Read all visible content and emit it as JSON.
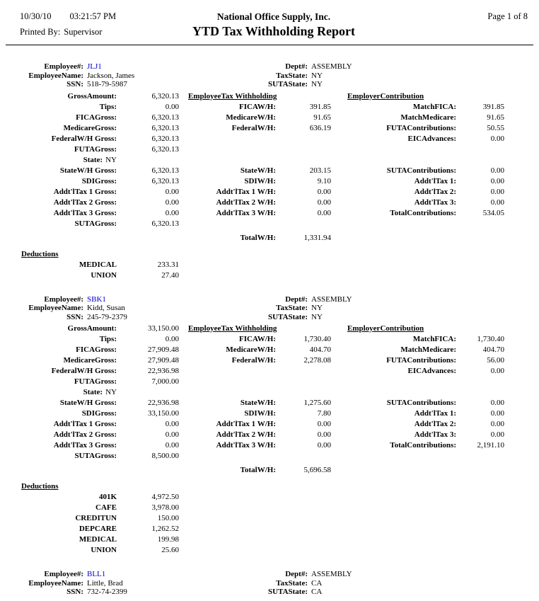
{
  "header": {
    "date": "10/30/10",
    "time": "03:21:57 PM",
    "printed_by_label": "Printed By:",
    "printed_by_value": "Supervisor",
    "company_name": "National Office Supply, Inc.",
    "report_title": "YTD Tax Withholding Report",
    "page_info": "Page 1 of 8"
  },
  "colors": {
    "text": "#000000",
    "employee_link": "#0000cc",
    "background": "#ffffff"
  },
  "labels": {
    "employee_no": "Employee#:",
    "employee_name": "EmployeeName:",
    "ssn": "SSN:",
    "dept": "Dept#:",
    "tax_state": "TaxState:",
    "suta_state": "SUTAState:",
    "gross_amount": "GrossAmount:",
    "tips": "Tips:",
    "fica_gross": "FICAGross:",
    "medicare_gross": "MedicareGross:",
    "federal_wh_gross": "FederalW/H Gross:",
    "futa_gross": "FUTAGross:",
    "state": "State:",
    "state_wh_gross": "StateW/H Gross:",
    "sdi_gross": "SDIGross:",
    "addl_tax_1_gross": "Addt'lTax 1 Gross:",
    "addl_tax_2_gross": "Addt'lTax 2 Gross:",
    "addl_tax_3_gross": "Addt'lTax 3 Gross:",
    "suta_gross": "SUTAGross:",
    "employee_tax_header": "EmployeeTax Withholding",
    "fica_wh": "FICAW/H:",
    "medicare_wh": "MedicareW/H:",
    "federal_wh": "FederalW/H:",
    "state_wh": "StateW/H:",
    "sdi_wh": "SDIW/H:",
    "addl_tax_1_wh": "Addt'lTax 1 W/H:",
    "addl_tax_2_wh": "Addt'lTax 2 W/H:",
    "addl_tax_3_wh": "Addt'lTax 3 W/H:",
    "total_wh": "TotalW/H:",
    "employer_contrib_header": "EmployerContribution",
    "match_fica": "MatchFICA:",
    "match_medicare": "MatchMedicare:",
    "futa_contributions": "FUTAContributions:",
    "eic_advances": "EICAdvances:",
    "suta_contributions": "SUTAContributions:",
    "addl_tax_1": "Addt'lTax 1:",
    "addl_tax_2": "Addt'lTax 2:",
    "addl_tax_3": "Addt'lTax 3:",
    "total_contributions": "TotalContributions:",
    "deductions": "Deductions"
  },
  "employees": [
    {
      "employee_no": "JLJ1",
      "name": "Jackson, James",
      "ssn": "518-79-5987",
      "dept": "ASSEMBLY",
      "tax_state": "NY",
      "suta_state": "NY",
      "state": "NY",
      "amounts": {
        "gross_amount": "6,320.13",
        "tips": "0.00",
        "fica_gross": "6,320.13",
        "medicare_gross": "6,320.13",
        "federal_wh_gross": "6,320.13",
        "futa_gross": "6,320.13",
        "state_wh_gross": "6,320.13",
        "sdi_gross": "6,320.13",
        "addl_tax_1_gross": "0.00",
        "addl_tax_2_gross": "0.00",
        "addl_tax_3_gross": "0.00",
        "suta_gross": "6,320.13",
        "fica_wh": "391.85",
        "medicare_wh": "91.65",
        "federal_wh": "636.19",
        "state_wh": "203.15",
        "sdi_wh": "9.10",
        "addl_tax_1_wh": "0.00",
        "addl_tax_2_wh": "0.00",
        "addl_tax_3_wh": "0.00",
        "total_wh": "1,331.94",
        "match_fica": "391.85",
        "match_medicare": "91.65",
        "futa_contributions": "50.55",
        "eic_advances": "0.00",
        "suta_contributions": "0.00",
        "addl_tax_1": "0.00",
        "addl_tax_2": "0.00",
        "addl_tax_3": "0.00",
        "total_contributions": "534.05"
      },
      "deductions": [
        {
          "name": "MEDICAL",
          "amount": "233.31"
        },
        {
          "name": "UNION",
          "amount": "27.40"
        }
      ]
    },
    {
      "employee_no": "SBK1",
      "name": "Kidd, Susan",
      "ssn": "245-79-2379",
      "dept": "ASSEMBLY",
      "tax_state": "NY",
      "suta_state": "NY",
      "state": "NY",
      "amounts": {
        "gross_amount": "33,150.00",
        "tips": "0.00",
        "fica_gross": "27,909.48",
        "medicare_gross": "27,909.48",
        "federal_wh_gross": "22,936.98",
        "futa_gross": "7,000.00",
        "state_wh_gross": "22,936.98",
        "sdi_gross": "33,150.00",
        "addl_tax_1_gross": "0.00",
        "addl_tax_2_gross": "0.00",
        "addl_tax_3_gross": "0.00",
        "suta_gross": "8,500.00",
        "fica_wh": "1,730.40",
        "medicare_wh": "404.70",
        "federal_wh": "2,278.08",
        "state_wh": "1,275.60",
        "sdi_wh": "7.80",
        "addl_tax_1_wh": "0.00",
        "addl_tax_2_wh": "0.00",
        "addl_tax_3_wh": "0.00",
        "total_wh": "5,696.58",
        "match_fica": "1,730.40",
        "match_medicare": "404.70",
        "futa_contributions": "56.00",
        "eic_advances": "0.00",
        "suta_contributions": "0.00",
        "addl_tax_1": "0.00",
        "addl_tax_2": "0.00",
        "addl_tax_3": "0.00",
        "total_contributions": "2,191.10"
      },
      "deductions": [
        {
          "name": "401K",
          "amount": "4,972.50"
        },
        {
          "name": "CAFE",
          "amount": "3,978.00"
        },
        {
          "name": "CREDITUN",
          "amount": "150.00"
        },
        {
          "name": "DEPCARE",
          "amount": "1,262.52"
        },
        {
          "name": "MEDICAL",
          "amount": "199.98"
        },
        {
          "name": "UNION",
          "amount": "25.60"
        }
      ]
    },
    {
      "employee_no": "BLL1",
      "name": "Little, Brad",
      "ssn": "732-74-2399",
      "dept": "ASSEMBLY",
      "tax_state": "CA",
      "suta_state": "CA",
      "partial": true
    }
  ]
}
